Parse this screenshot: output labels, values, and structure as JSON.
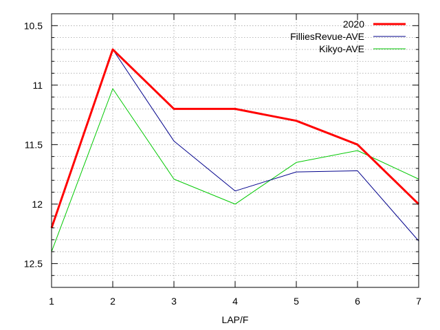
{
  "chart_data": {
    "type": "line",
    "title": "",
    "xlabel": "LAP/F",
    "ylabel": "",
    "x": [
      1,
      2,
      3,
      4,
      5,
      6,
      7
    ],
    "xlim": [
      1,
      7
    ],
    "ylim": [
      12.7,
      10.4
    ],
    "y_inverted": true,
    "x_ticks": [
      1,
      2,
      3,
      4,
      5,
      6,
      7
    ],
    "y_ticks": [
      10.5,
      11,
      11.5,
      12,
      12.5
    ],
    "y_tick_labels": [
      "10.5",
      "11",
      "11.5",
      "12",
      "12.5"
    ],
    "y_minor_step": 0.1,
    "grid": true,
    "legend_position": "top-right",
    "series": [
      {
        "name": "2020",
        "color": "#ff0000",
        "values": [
          12.2,
          10.7,
          11.2,
          11.2,
          11.3,
          11.5,
          12.0
        ]
      },
      {
        "name": "FilliesRevue-AVE",
        "color": "#00008b",
        "values": [
          12.2,
          10.7,
          11.47,
          11.89,
          11.73,
          11.72,
          12.31
        ]
      },
      {
        "name": "Kikyo-AVE",
        "color": "#00c800",
        "values": [
          12.4,
          11.03,
          11.79,
          12.0,
          11.65,
          11.55,
          11.79
        ]
      }
    ]
  }
}
